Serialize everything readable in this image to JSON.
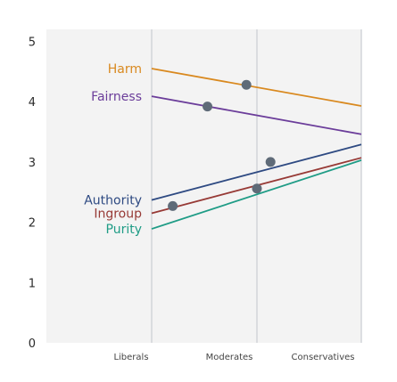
{
  "chart_data": {
    "type": "line",
    "categories": [
      "Liberals",
      "Moderates",
      "Conservatives"
    ],
    "ylim": [
      0,
      5.2
    ],
    "yticks": [
      0,
      1,
      2,
      3,
      4,
      5
    ],
    "grid": {
      "vertical": true,
      "horizontal": false
    },
    "legend": "inline-left",
    "series": [
      {
        "name": "Harm",
        "color": "#d9891f",
        "start": 4.55,
        "end": 3.93,
        "point_x": 0.9,
        "point_y": 4.28
      },
      {
        "name": "Fairness",
        "color": "#6b3d9a",
        "start": 4.09,
        "end": 3.46,
        "point_x": 0.53,
        "point_y": 3.92
      },
      {
        "name": "Authority",
        "color": "#2e4a82",
        "start": 2.37,
        "end": 3.29,
        "point_x": 1.13,
        "point_y": 3.0
      },
      {
        "name": "Ingroup",
        "color": "#973a36",
        "start": 2.15,
        "end": 3.07,
        "point_x": 0.2,
        "point_y": 2.27
      },
      {
        "name": "Purity",
        "color": "#1f9c86",
        "start": 1.89,
        "end": 3.03,
        "point_x": 1.0,
        "point_y": 2.56
      }
    ],
    "point_color": "#5f6b78"
  }
}
